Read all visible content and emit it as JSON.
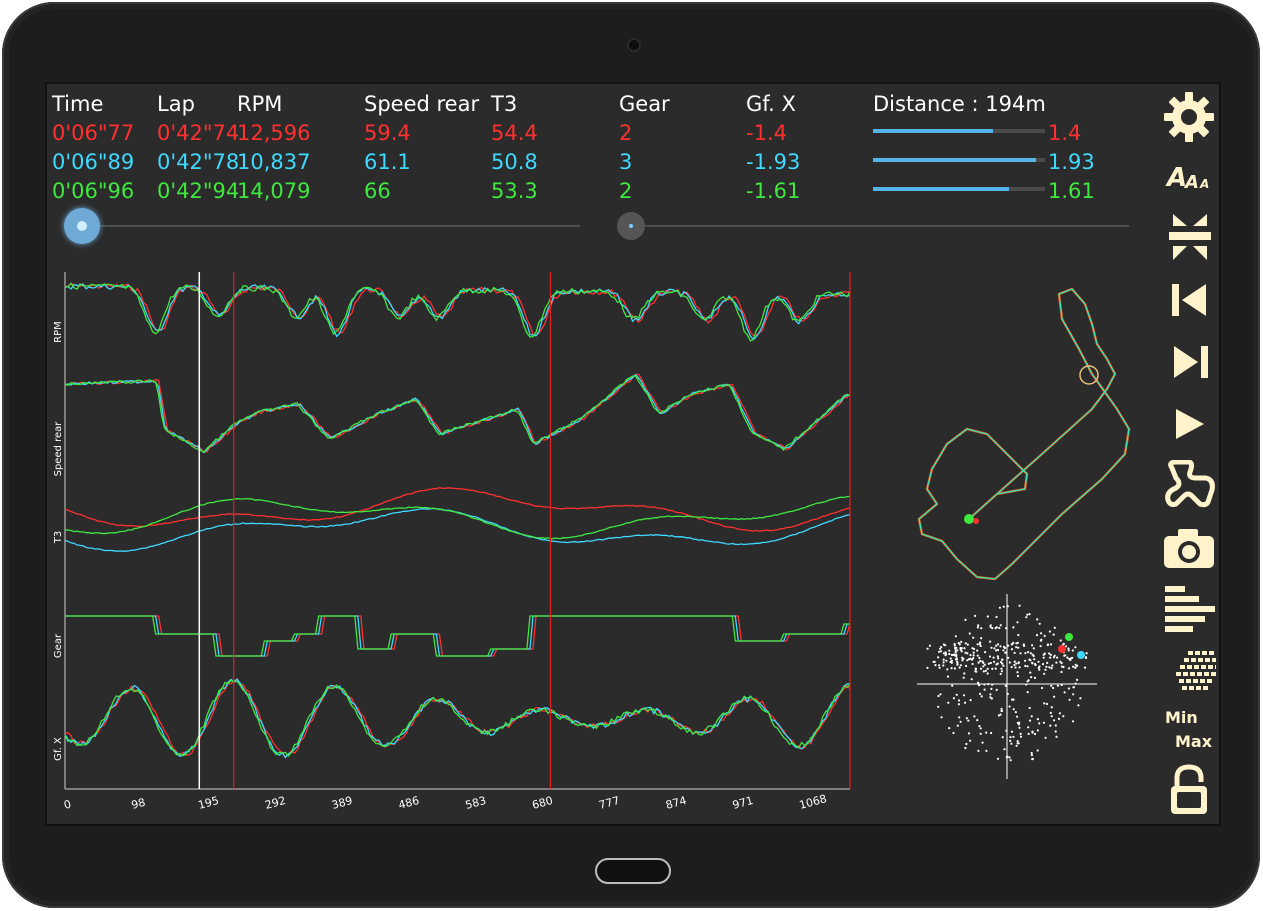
{
  "headers": {
    "time": "Time",
    "lap": "Lap",
    "rpm": "RPM",
    "speed": "Speed rear",
    "t3": "T3",
    "gear": "Gear",
    "gfx": "Gf. X",
    "distance": "Distance : 194m"
  },
  "rows": [
    {
      "color": "#ff3030",
      "time": "0'06\"77",
      "lap": "0'42\"74",
      "rpm": "12,596",
      "speed": "59.4",
      "t3": "54.4",
      "gear": "2",
      "gfx": "-1.4",
      "bar_label": "1.4",
      "bar_fraction": 0.7
    },
    {
      "color": "#3fd8ff",
      "time": "0'06\"89",
      "lap": "0'42\"78",
      "rpm": "10,837",
      "speed": "61.1",
      "t3": "50.8",
      "gear": "3",
      "gfx": "-1.93",
      "bar_label": "1.93",
      "bar_fraction": 0.95
    },
    {
      "color": "#3ee83e",
      "time": "0'06\"96",
      "lap": "0'42\"94",
      "rpm": "14,079",
      "speed": "66",
      "t3": "53.3",
      "gear": "2",
      "gfx": "-1.61",
      "bar_label": "1.61",
      "bar_fraction": 0.79
    }
  ],
  "sliders": {
    "position_fraction": 0.0,
    "zoom_fraction": 0.0
  },
  "chart_data": {
    "type": "line",
    "series_names": [
      "RPM",
      "Speed rear",
      "T3",
      "Gear",
      "Gf. X"
    ],
    "x_tick_labels": [
      "0",
      "98",
      "195",
      "292",
      "389",
      "486",
      "583",
      "680",
      "777",
      "874",
      "971",
      "1068"
    ],
    "xlim": [
      0,
      1140
    ],
    "cursor_x": 195,
    "red_markers_x": [
      245,
      705,
      1140
    ],
    "colors": {
      "red": "#ff3030",
      "cyan": "#3fd8ff",
      "green": "#3ee83e",
      "cursor": "#ffffff",
      "marker": "#e02020"
    }
  },
  "toolbar": {
    "icons": [
      "gear-icon",
      "font-size-icon",
      "collapse-icon",
      "skip-back-icon",
      "skip-forward-icon",
      "play-icon",
      "track-icon",
      "camera-icon",
      "bar-chart-icon",
      "scatter-icon",
      "min-max-icon",
      "unlock-icon"
    ],
    "min_label": "Min",
    "max_label": "Max",
    "icon_color": "#fff3cc"
  }
}
